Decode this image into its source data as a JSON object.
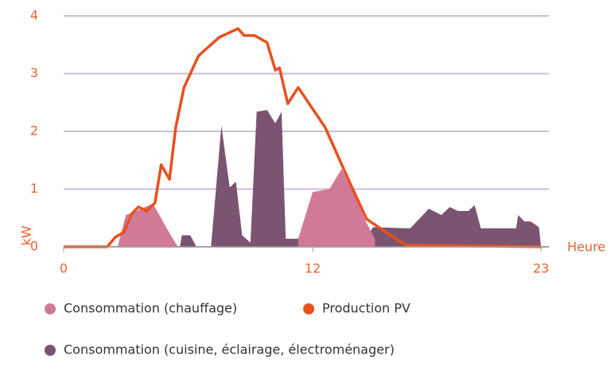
{
  "chart_data": {
    "type": "area",
    "x_label": "Heure",
    "y_label": "kW",
    "xlim": [
      0,
      23
    ],
    "ylim": [
      0,
      4
    ],
    "xticks": [
      0,
      12,
      23
    ],
    "yticks": [
      0,
      1,
      2,
      3,
      4
    ],
    "grid": true,
    "series": [
      {
        "name": "Consommation (cuisine, éclairage, électroménager)",
        "color": "#7a5470",
        "kind": "area",
        "x": [
          2.7,
          2.9,
          3.1,
          5.6,
          5.7,
          6.1,
          6.4,
          7.1,
          7.6,
          8.0,
          8.3,
          8.6,
          9.0,
          9.3,
          9.8,
          10.2,
          10.5,
          10.7,
          14.6,
          14.9,
          16.7,
          17.6,
          18.2,
          18.6,
          19.0,
          19.5,
          19.8,
          20.1,
          21.8,
          21.9,
          22.2,
          22.5,
          22.9,
          23
        ],
        "values": [
          0,
          0.2,
          0,
          0,
          0.2,
          0.2,
          0,
          0,
          2.1,
          1.03,
          1.13,
          0.2,
          0.07,
          2.34,
          2.37,
          2.14,
          2.34,
          0.14,
          0.14,
          0.34,
          0.32,
          0.66,
          0.55,
          0.69,
          0.62,
          0.62,
          0.72,
          0.32,
          0.32,
          0.55,
          0.44,
          0.44,
          0.34,
          0
        ]
      },
      {
        "name": "Consommation (chauffage)",
        "color": "#d17a98",
        "kind": "area",
        "x": [
          2.6,
          3.0,
          3.5,
          4.3,
          5.0,
          5.5,
          8.0,
          11.3,
          12.0,
          12.8,
          13.4,
          14.0,
          14.6,
          15.0
        ],
        "values": [
          0,
          0.55,
          0.62,
          0.75,
          0.3,
          0,
          null,
          0.14,
          0.95,
          1.0,
          1.35,
          0.9,
          0.41,
          0.14
        ]
      },
      {
        "name": "Production PV",
        "color": "#e8501e",
        "kind": "line",
        "x": [
          0,
          2.1,
          2.5,
          2.9,
          3.3,
          3.6,
          4.0,
          4.4,
          4.7,
          5.1,
          5.4,
          5.8,
          6.5,
          7.5,
          8.4,
          8.7,
          9.2,
          9.8,
          10.2,
          10.4,
          10.8,
          11.3,
          12.6,
          13.8,
          14.6,
          15.7,
          16.5,
          23
        ],
        "values": [
          0,
          0,
          0.17,
          0.25,
          0.58,
          0.69,
          0.62,
          0.76,
          1.42,
          1.17,
          2.07,
          2.76,
          3.31,
          3.63,
          3.78,
          3.66,
          3.66,
          3.54,
          3.06,
          3.1,
          2.48,
          2.76,
          2.07,
          1.1,
          0.48,
          0.21,
          0.03,
          0
        ]
      }
    ]
  }
}
